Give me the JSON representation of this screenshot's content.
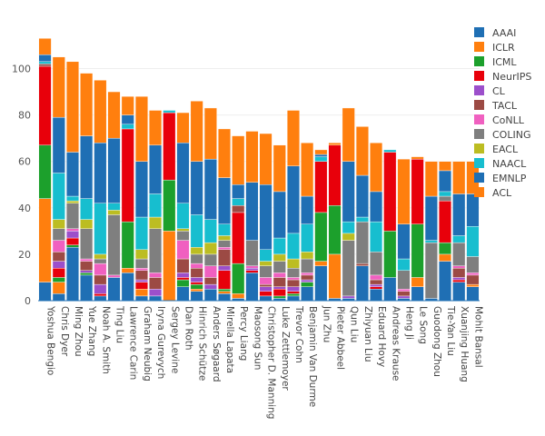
{
  "chart_data": {
    "type": "bar",
    "stacked": true,
    "title": "",
    "xlabel": "",
    "ylabel": "",
    "ylim": [
      0,
      115
    ],
    "yticks": [
      0,
      20,
      40,
      60,
      80,
      100
    ],
    "grid": true,
    "legend_position": "right",
    "categories": [
      "Yoshua Bengio",
      "Chris Dyer",
      "Ming Zhou",
      "Yue Zhang",
      "Noah A. Smith",
      "Ting Liu",
      "Lawrence Carin",
      "Graham Neubig",
      "Iryna Gurevych",
      "Sergey Levine",
      "Dan Roth",
      "Hinrich Schütze",
      "Anders Søgaard",
      "Mirella Lapata",
      "Percy Liang",
      "Maosong Sun",
      "Christopher D. Manning",
      "Luke Zettlemoyer",
      "Trevor Cohn",
      "Benjamin Van Durme",
      "Jun Zhu",
      "Pieter Abbeel",
      "Qun Liu",
      "Zhiyuan Liu",
      "Eduard Hovy",
      "Andreas Krause",
      "Heng Ji",
      "Le Song",
      "Guodong Zhou",
      "Tie-Yan Liu",
      "Xuanjing Huang",
      "Mohit Bansal"
    ],
    "series": [
      {
        "name": "AAAI",
        "color": "#1f6fb4",
        "values": [
          8,
          3,
          23,
          11,
          2,
          10,
          12,
          2,
          2,
          0,
          6,
          4,
          5,
          3,
          1,
          12,
          2,
          1,
          2,
          6,
          15,
          1,
          1,
          15,
          5,
          10,
          1,
          6,
          1,
          17,
          8,
          6
        ]
      },
      {
        "name": "ICLR",
        "color": "#ff7f0e",
        "values": [
          36,
          5,
          0,
          0,
          0,
          0,
          2,
          3,
          0,
          30,
          0,
          1,
          0,
          1,
          2,
          0,
          0,
          0,
          0,
          0,
          2,
          19,
          0,
          0,
          0,
          0,
          0,
          4,
          0,
          3,
          0,
          1
        ]
      },
      {
        "name": "ICML",
        "color": "#1ca02c",
        "values": [
          23,
          2,
          1,
          1,
          0,
          0,
          20,
          0,
          0,
          22,
          3,
          2,
          0,
          1,
          13,
          0,
          0,
          1,
          1,
          2,
          21,
          21,
          0,
          0,
          0,
          20,
          0,
          23,
          0,
          5,
          0,
          0
        ]
      },
      {
        "name": "NeurIPS",
        "color": "#e8000b",
        "values": [
          34,
          4,
          3,
          0,
          1,
          0,
          40,
          3,
          0,
          29,
          1,
          1,
          0,
          8,
          22,
          1,
          2,
          3,
          1,
          0,
          22,
          26,
          0,
          0,
          1,
          34,
          0,
          28,
          0,
          18,
          1,
          0
        ]
      },
      {
        "name": "CL",
        "color": "#9c4fcb",
        "values": [
          0,
          3,
          3,
          1,
          4,
          0,
          0,
          1,
          3,
          0,
          2,
          2,
          2,
          2,
          0,
          1,
          2,
          1,
          2,
          1,
          0,
          0,
          1,
          0,
          1,
          0,
          1,
          0,
          0,
          0,
          1,
          0
        ]
      },
      {
        "name": "TACL",
        "color": "#9c4a44",
        "values": [
          1,
          4,
          0,
          4,
          4,
          0,
          0,
          4,
          5,
          0,
          6,
          4,
          3,
          7,
          3,
          0,
          1,
          4,
          3,
          2,
          0,
          0,
          0,
          1,
          2,
          0,
          2,
          0,
          0,
          0,
          4,
          4
        ]
      },
      {
        "name": "CoNLL",
        "color": "#f060c0",
        "values": [
          0,
          5,
          1,
          1,
          5,
          1,
          0,
          1,
          2,
          0,
          8,
          2,
          5,
          1,
          0,
          1,
          3,
          2,
          1,
          1,
          0,
          0,
          0,
          0,
          2,
          0,
          1,
          0,
          0,
          0,
          1,
          1
        ]
      },
      {
        "name": "COLING",
        "color": "#7f7f7f",
        "values": [
          0,
          5,
          11,
          13,
          2,
          26,
          0,
          4,
          19,
          0,
          4,
          4,
          5,
          3,
          0,
          11,
          5,
          5,
          4,
          6,
          0,
          0,
          24,
          18,
          10,
          0,
          8,
          0,
          24,
          2,
          10,
          7
        ]
      },
      {
        "name": "EACL",
        "color": "#bcbd22",
        "values": [
          0,
          4,
          1,
          4,
          2,
          2,
          0,
          4,
          5,
          0,
          1,
          3,
          5,
          2,
          0,
          0,
          2,
          3,
          4,
          3,
          0,
          0,
          3,
          0,
          0,
          0,
          0,
          0,
          0,
          0,
          0,
          0
        ]
      },
      {
        "name": "NAACL",
        "color": "#17becf",
        "values": [
          1,
          20,
          2,
          9,
          22,
          3,
          2,
          14,
          10,
          1,
          11,
          14,
          10,
          5,
          3,
          0,
          5,
          7,
          11,
          12,
          2,
          0,
          5,
          2,
          13,
          1,
          5,
          0,
          1,
          2,
          3,
          13
        ]
      },
      {
        "name": "EMNLP",
        "color": "#1f6fb4",
        "values": [
          3,
          24,
          19,
          27,
          26,
          28,
          4,
          24,
          21,
          0,
          26,
          23,
          26,
          20,
          6,
          25,
          28,
          20,
          29,
          12,
          1,
          0,
          26,
          18,
          13,
          0,
          15,
          0,
          19,
          9,
          18,
          14
        ]
      },
      {
        "name": "ACL",
        "color": "#ff7f0e",
        "values": [
          7,
          26,
          39,
          27,
          27,
          20,
          8,
          28,
          15,
          0,
          13,
          26,
          22,
          21,
          21,
          22,
          22,
          20,
          24,
          23,
          2,
          1,
          23,
          21,
          21,
          0,
          28,
          1,
          15,
          4,
          14,
          14
        ]
      }
    ]
  }
}
